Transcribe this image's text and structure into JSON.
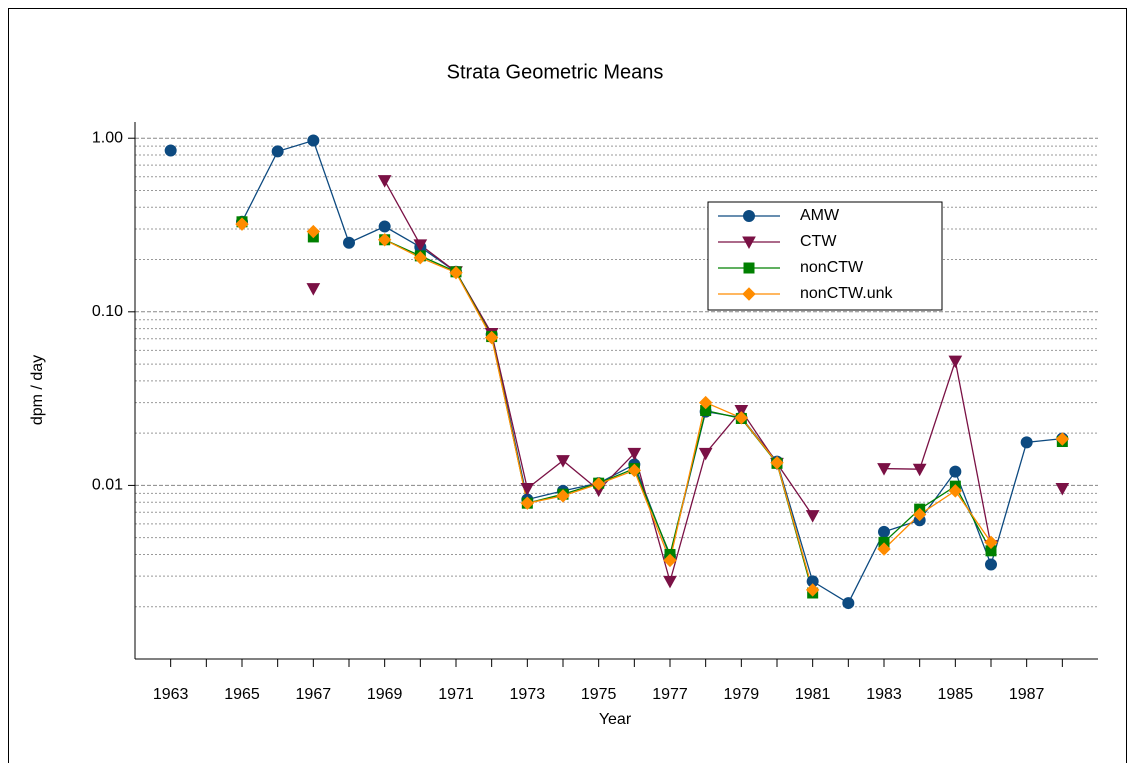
{
  "chart_data": {
    "type": "line",
    "title": "Strata Geometric Means",
    "xlabel": "Year",
    "ylabel": "dpm / day",
    "x": [
      1963,
      1964,
      1965,
      1966,
      1967,
      1968,
      1969,
      1970,
      1971,
      1972,
      1973,
      1974,
      1975,
      1976,
      1977,
      1978,
      1979,
      1980,
      1981,
      1982,
      1983,
      1984,
      1985,
      1986,
      1987,
      1988
    ],
    "xlim": [
      1962,
      1989
    ],
    "xticks": [
      1963,
      1965,
      1967,
      1969,
      1971,
      1973,
      1975,
      1977,
      1979,
      1981,
      1983,
      1985,
      1987
    ],
    "xminor_ticks": [
      1964,
      1966,
      1968,
      1970,
      1972,
      1974,
      1976,
      1978,
      1980,
      1982,
      1984,
      1986,
      1988
    ],
    "ylim": [
      0.001,
      1.24
    ],
    "yscale": "log",
    "yticks": [
      {
        "value": 1,
        "label": "1.00"
      },
      {
        "value": 0.1,
        "label": "0.10"
      },
      {
        "value": 0.01,
        "label": "0.01"
      }
    ],
    "yminor_ticks": [
      0.002,
      0.003,
      0.004,
      0.005,
      0.006,
      0.007,
      0.008,
      0.009,
      0.02,
      0.03,
      0.04,
      0.05,
      0.06,
      0.07,
      0.08,
      0.09,
      0.2,
      0.3,
      0.4,
      0.5,
      0.6,
      0.7,
      0.8,
      0.9
    ],
    "grid": true,
    "legend": "upper right",
    "series": [
      {
        "name": "AMW",
        "color": "#0d4a80",
        "marker": "circle",
        "values": [
          0.85,
          null,
          0.33,
          0.84,
          0.97,
          0.25,
          0.31,
          0.236,
          0.17,
          0.074,
          0.0083,
          0.0093,
          0.0103,
          0.0132,
          0.0039,
          0.0266,
          0.0246,
          0.0137,
          0.0028,
          0.0021,
          0.0054,
          0.0063,
          0.012,
          0.0035,
          0.0177,
          0.0186
        ]
      },
      {
        "name": "CTW",
        "color": "#7a1145",
        "marker": "triangle-down",
        "values": [
          null,
          null,
          null,
          null,
          0.136,
          null,
          0.57,
          0.243,
          0.17,
          0.075,
          0.0096,
          0.0139,
          0.0094,
          0.0153,
          0.0028,
          0.0153,
          0.027,
          0.0134,
          0.0067,
          null,
          0.0125,
          0.0124,
          0.052,
          0.0045,
          null,
          0.0096
        ]
      },
      {
        "name": "nonCTW",
        "color": "#008000",
        "marker": "square",
        "values": [
          null,
          null,
          0.33,
          null,
          0.27,
          null,
          0.26,
          0.21,
          0.17,
          0.072,
          0.0079,
          0.0089,
          0.0103,
          0.0125,
          0.004,
          0.027,
          0.0243,
          0.0134,
          0.0024,
          null,
          0.0047,
          0.0073,
          0.0099,
          0.0042,
          null,
          0.0179
        ]
      },
      {
        "name": "nonCTW.unk",
        "color": "#ff8c00",
        "marker": "diamond",
        "values": [
          null,
          null,
          0.32,
          null,
          0.29,
          null,
          0.26,
          0.205,
          0.168,
          0.071,
          0.0079,
          0.0087,
          0.0102,
          0.0122,
          0.0037,
          0.03,
          0.0245,
          0.0135,
          0.0025,
          null,
          0.0043,
          0.0068,
          0.0093,
          0.0047,
          null,
          0.0185
        ]
      }
    ]
  }
}
